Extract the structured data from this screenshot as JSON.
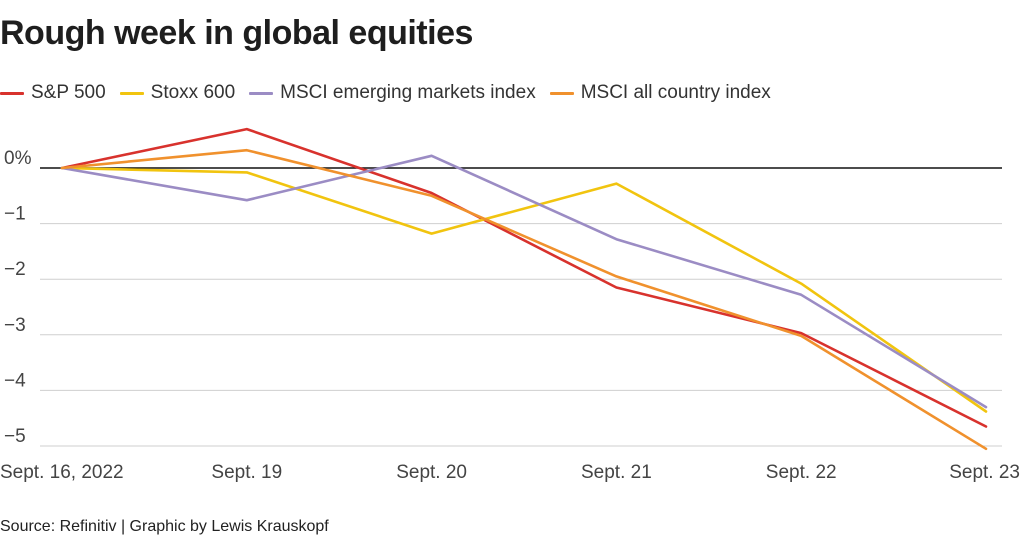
{
  "chart_data": {
    "type": "line",
    "title": "Rough week in global equities",
    "xlabel": "",
    "ylabel": "",
    "categories": [
      "Sept. 16, 2022",
      "Sept. 19",
      "Sept. 20",
      "Sept. 21",
      "Sept. 22",
      "Sept. 23"
    ],
    "y_ticks": [
      0,
      -1,
      -2,
      -3,
      -4,
      -5
    ],
    "y_tick_labels": [
      "0%",
      "−1",
      "−2",
      "−3",
      "−4",
      "−5"
    ],
    "ylim": [
      -5,
      0.9
    ],
    "grid": true,
    "legend_position": "top-left",
    "series": [
      {
        "name": "S&P 500",
        "color": "#d8322d",
        "values": [
          0,
          0.7,
          -0.45,
          -2.15,
          -2.97,
          -4.65
        ]
      },
      {
        "name": "Stoxx 600",
        "color": "#f1c40f",
        "values": [
          0,
          -0.08,
          -1.18,
          -0.28,
          -2.08,
          -4.38
        ]
      },
      {
        "name": "MSCI emerging markets index",
        "color": "#9b8cc4",
        "values": [
          0,
          -0.58,
          0.22,
          -1.28,
          -2.28,
          -4.3
        ]
      },
      {
        "name": "MSCI all country index",
        "color": "#f0912d",
        "values": [
          0,
          0.32,
          -0.5,
          -1.95,
          -3.02,
          -5.05
        ]
      }
    ],
    "source": "Source: Refinitiv | Graphic by Lewis Krauskopf"
  }
}
